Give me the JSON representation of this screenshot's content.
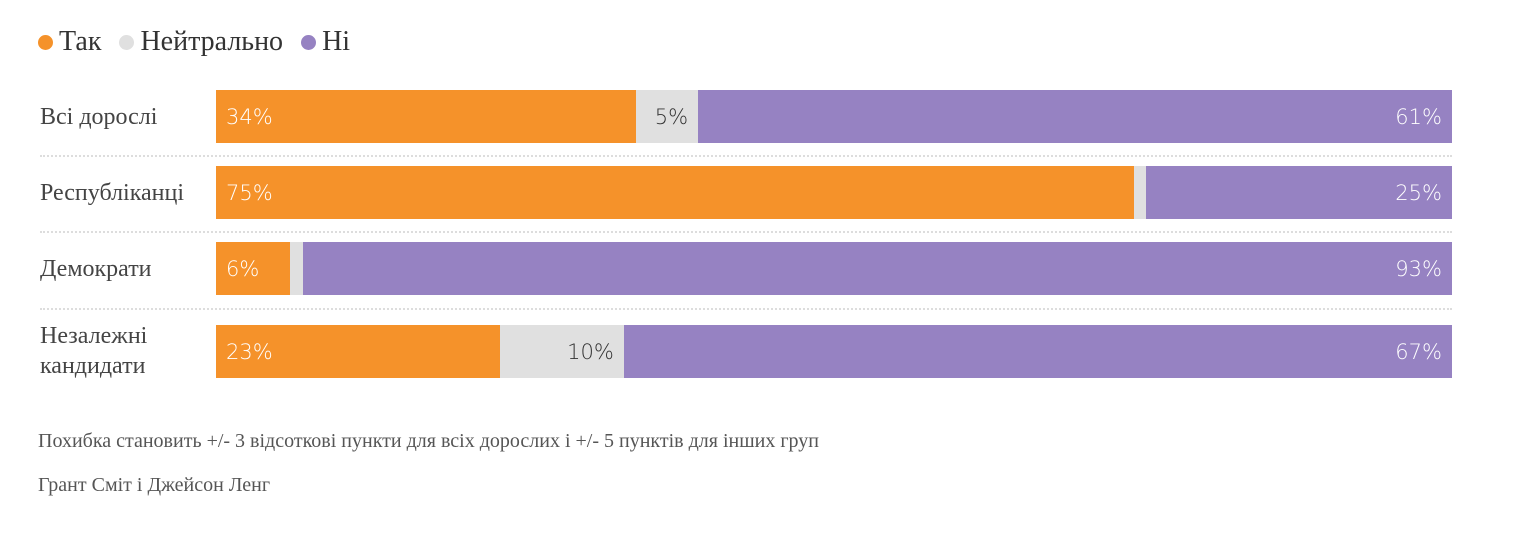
{
  "chart_data": {
    "type": "bar",
    "orientation": "horizontal",
    "stacked": true,
    "unit": "%",
    "categories": [
      "Всі дорослі",
      "Республіканці",
      "Демократи",
      "Незалежні кандидати"
    ],
    "series": [
      {
        "name": "Так",
        "color": "#F5922A",
        "text_color": "#ffffff",
        "values": [
          34,
          75,
          6,
          23
        ],
        "labels": [
          "34%",
          "75%",
          "6%",
          "23%"
        ]
      },
      {
        "name": "Нейтрально",
        "color": "#E0E0E0",
        "text_color": "#333333",
        "values": [
          5,
          1,
          1,
          10
        ],
        "labels": [
          "5%",
          "",
          "",
          "10%"
        ]
      },
      {
        "name": "Ні",
        "color": "#9682C2",
        "text_color": "#ffffff",
        "values": [
          61,
          25,
          93,
          67
        ],
        "labels": [
          "61%",
          "25%",
          "93%",
          "67%"
        ]
      }
    ],
    "xlim": [
      0,
      100
    ],
    "legend_position": "top-left",
    "grid": false
  },
  "footer": {
    "note": "Похибка становить +/- 3 відсоткові пункти для всіх дорослих і +/- 5 пунктів для інших груп",
    "credit": "Грант Сміт і Джейсон Ленг"
  }
}
